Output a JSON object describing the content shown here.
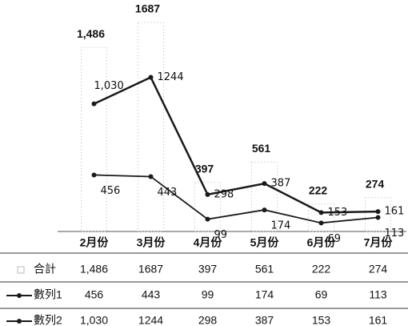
{
  "chart_data": {
    "type": "line",
    "categories": [
      "2月份",
      "3月份",
      "4月份",
      "5月份",
      "6月份",
      "7月份"
    ],
    "series": [
      {
        "name": "合計",
        "type": "bar",
        "color": "#b8b8b8",
        "values": [
          1486,
          1687,
          397,
          561,
          222,
          274
        ],
        "value_labels": [
          "1,486",
          "1687",
          "397",
          "561",
          "222",
          "274"
        ]
      },
      {
        "name": "數列1",
        "type": "line",
        "color": "#1a1a1a",
        "values": [
          456,
          443,
          99,
          174,
          69,
          113
        ]
      },
      {
        "name": "數列2",
        "type": "line",
        "color": "#1a1a1a",
        "values": [
          1030,
          1244,
          298,
          387,
          153,
          161
        ],
        "value_labels": [
          "1,030",
          "1244",
          "298",
          "387",
          "153",
          "161"
        ]
      }
    ]
  }
}
